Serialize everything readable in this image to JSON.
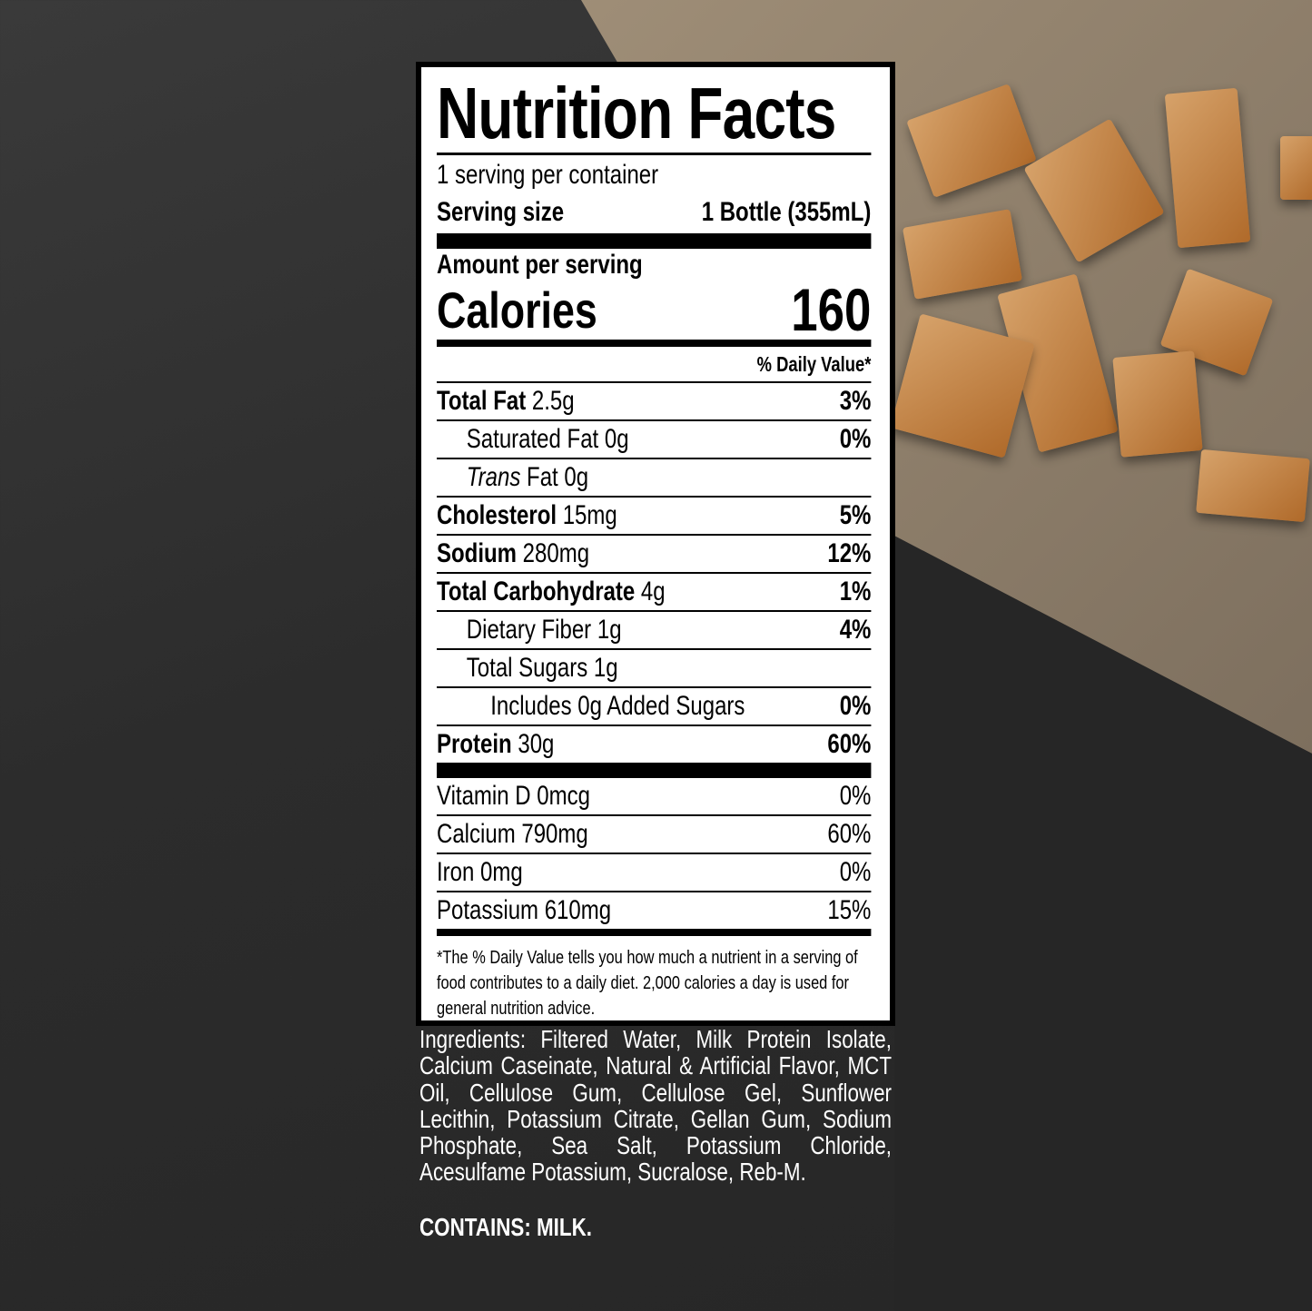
{
  "label": {
    "title": "Nutrition Facts",
    "servings_per_container": "1 serving per container",
    "serving_size_label": "Serving size",
    "serving_size_value": "1 Bottle (355mL)",
    "amount_per_serving": "Amount per serving",
    "calories_label": "Calories",
    "calories_value": "160",
    "daily_value_header": "% Daily Value*",
    "nutrients": [
      {
        "name": "Total Fat",
        "amount": "2.5g",
        "dv": "3%"
      },
      {
        "name": "Saturated Fat",
        "amount": "0g",
        "dv": "0%"
      },
      {
        "name": "Trans",
        "amount": "Fat 0g",
        "dv": ""
      },
      {
        "name": "Cholesterol",
        "amount": "15mg",
        "dv": "5%"
      },
      {
        "name": "Sodium",
        "amount": "280mg",
        "dv": "12%"
      },
      {
        "name": "Total Carbohydrate",
        "amount": "4g",
        "dv": "1%"
      },
      {
        "name": "Dietary Fiber",
        "amount": "1g",
        "dv": "4%"
      },
      {
        "name": "Total Sugars",
        "amount": "1g",
        "dv": ""
      },
      {
        "name": "Includes 0g Added Sugars",
        "amount": "",
        "dv": "0%"
      },
      {
        "name": "Protein",
        "amount": "30g",
        "dv": "60%"
      }
    ],
    "vitamins": [
      {
        "text": "Vitamin D 0mcg",
        "dv": "0%"
      },
      {
        "text": "Calcium 790mg",
        "dv": "60%"
      },
      {
        "text": "Iron 0mg",
        "dv": "0%"
      },
      {
        "text": "Potassium 610mg",
        "dv": "15%"
      }
    ],
    "footnote": "*The % Daily Value tells you how much a nutrient in a serving of food contributes to a daily diet. 2,000 calories a day is used for general nutrition advice."
  },
  "ingredients": "Ingredients: Filtered Water, Milk Protein Isolate, Calcium Caseinate, Natural & Artificial Flavor, MCT Oil, Cellulose Gum, Cellulose Gel, Sunflower Lecithin, Potassium Citrate, Gellan Gum, Sodium Phosphate, Sea Salt, Potassium Chloride, Acesulfame Potassium, Sucralose, Reb-M.",
  "contains": "CONTAINS: MILK."
}
